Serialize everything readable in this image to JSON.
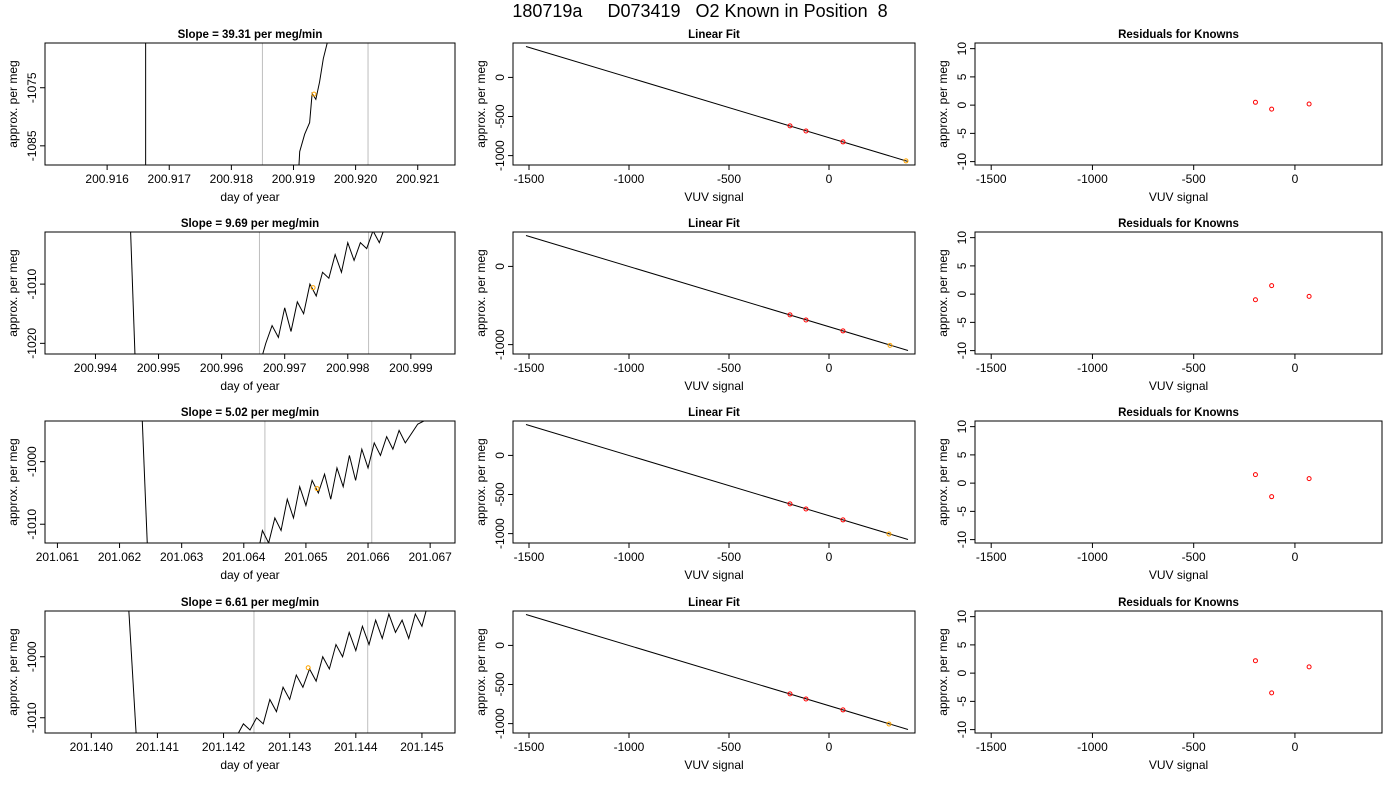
{
  "page_title": "180719a     D073419   O2 Known in Position  8",
  "colors": {
    "trace": "#000000",
    "vline": "#bebebe",
    "known_point": "#ff0000",
    "sample_point": "#ffa500"
  },
  "chart_data": [
    {
      "type": "line",
      "title": "Slope =  39.31  per meg/min",
      "xlabel": "day of year",
      "ylabel": "approx. per meg",
      "xlim": [
        200.915,
        200.9216
      ],
      "ylim": [
        -1088.3,
        -1067.3
      ],
      "xticks": [
        200.916,
        200.917,
        200.918,
        200.919,
        200.92,
        200.921
      ],
      "xtick_labels": [
        "200.916",
        "200.917",
        "200.918",
        "200.919",
        "200.920",
        "200.921"
      ],
      "yticks": [
        -1085,
        -1075
      ],
      "ytick_labels": [
        "-1085",
        "-1075"
      ],
      "vlines": [
        200.9185,
        200.9202
      ],
      "series": [
        {
          "points": [
            [
              200.91662,
              -1063
            ],
            [
              200.91662,
              -1090
            ]
          ]
        },
        {
          "points": [
            [
              200.91908,
              -1090
            ],
            [
              200.9191,
              -1086
            ],
            [
              200.91918,
              -1083
            ],
            [
              200.91926,
              -1081
            ],
            [
              200.9193,
              -1076
            ],
            [
              200.91936,
              -1077
            ],
            [
              200.91942,
              -1074
            ],
            [
              200.91948,
              -1070
            ],
            [
              200.91955,
              -1067
            ],
            [
              200.91962,
              -1066
            ]
          ]
        }
      ],
      "markers": [
        {
          "x": 200.91933,
          "y": -1076.1
        }
      ]
    },
    {
      "type": "line",
      "title": "Linear Fit",
      "xlabel": "VUV signal",
      "ylabel": "approx. per meg",
      "xlim": [
        -1580,
        430
      ],
      "ylim": [
        -1120,
        440
      ],
      "xticks": [
        -1500,
        -1000,
        -500,
        0
      ],
      "xtick_labels": [
        "-1500",
        "-1000",
        "-500",
        "0"
      ],
      "yticks": [
        -1000,
        -500,
        0
      ],
      "ytick_labels": [
        "-1000",
        "-500",
        "0"
      ],
      "series": [
        {
          "points": [
            [
              -1515,
              395
            ],
            [
              395,
              -1075
            ]
          ]
        }
      ],
      "known_points": [
        {
          "x": -195,
          "y": -620
        },
        {
          "x": -115,
          "y": -685
        },
        {
          "x": 70,
          "y": -825
        }
      ],
      "sample_points": [
        {
          "x": 385,
          "y": -1068
        }
      ]
    },
    {
      "type": "scatter",
      "title": "Residuals for Knowns",
      "xlabel": "VUV signal",
      "ylabel": "approx. per meg",
      "xlim": [
        -1580,
        430
      ],
      "ylim": [
        -10.6,
        11.0
      ],
      "xticks": [
        -1500,
        -1000,
        -500,
        0
      ],
      "xtick_labels": [
        "-1500",
        "-1000",
        "-500",
        "0"
      ],
      "yticks": [
        -10,
        -5,
        0,
        5,
        10
      ],
      "ytick_labels": [
        "-10",
        "-5",
        "0",
        "5",
        "10"
      ],
      "known_points": [
        {
          "x": -195,
          "y": 0.5
        },
        {
          "x": -115,
          "y": -0.7
        },
        {
          "x": 70,
          "y": 0.2
        }
      ]
    },
    {
      "type": "line",
      "title": "Slope =  9.69  per meg/min",
      "xlabel": "day of year",
      "ylabel": "approx. per meg",
      "xlim": [
        200.9932,
        200.9997
      ],
      "ylim": [
        -1021.8,
        -1001.2
      ],
      "xticks": [
        200.994,
        200.995,
        200.996,
        200.997,
        200.998,
        200.999
      ],
      "xtick_labels": [
        "200.994",
        "200.995",
        "200.996",
        "200.997",
        "200.998",
        "200.999"
      ],
      "yticks": [
        -1020,
        -1010
      ],
      "ytick_labels": [
        "-1020",
        "-1010"
      ],
      "vlines": [
        200.9966,
        200.99833
      ],
      "series": [
        {
          "points": [
            [
              200.99455,
              -999
            ],
            [
              200.99463,
              -1023
            ]
          ]
        },
        {
          "points": [
            [
              200.99662,
              -1023
            ],
            [
              200.9967,
              -1020
            ],
            [
              200.9968,
              -1017
            ],
            [
              200.9969,
              -1019
            ],
            [
              200.997,
              -1014
            ],
            [
              200.9971,
              -1018
            ],
            [
              200.9972,
              -1013
            ],
            [
              200.9973,
              -1015
            ],
            [
              200.9974,
              -1010
            ],
            [
              200.9975,
              -1012
            ],
            [
              200.9976,
              -1008
            ],
            [
              200.9977,
              -1009
            ],
            [
              200.9978,
              -1005
            ],
            [
              200.9979,
              -1008
            ],
            [
              200.998,
              -1003
            ],
            [
              200.9981,
              -1006
            ],
            [
              200.9982,
              -1003
            ],
            [
              200.9983,
              -1004
            ],
            [
              200.9984,
              -1001
            ],
            [
              200.9985,
              -1003
            ],
            [
              200.9986,
              -1000
            ],
            [
              200.9988,
              -1001
            ],
            [
              200.999,
              -1000
            ],
            [
              200.9992,
              -1001
            ],
            [
              200.9995,
              -999
            ]
          ]
        }
      ],
      "markers": [
        {
          "x": 200.99745,
          "y": -1010.6
        }
      ]
    },
    {
      "type": "line",
      "title": "Linear Fit",
      "xlabel": "VUV signal",
      "ylabel": "approx. per meg",
      "xlim": [
        -1580,
        430
      ],
      "ylim": [
        -1120,
        440
      ],
      "xticks": [
        -1500,
        -1000,
        -500,
        0
      ],
      "xtick_labels": [
        "-1500",
        "-1000",
        "-500",
        "0"
      ],
      "yticks": [
        -1000,
        0
      ],
      "ytick_labels": [
        "-1000",
        "0"
      ],
      "series": [
        {
          "points": [
            [
              -1515,
              395
            ],
            [
              395,
              -1075
            ]
          ]
        }
      ],
      "known_points": [
        {
          "x": -195,
          "y": -620
        },
        {
          "x": -115,
          "y": -685
        },
        {
          "x": 70,
          "y": -825
        }
      ],
      "sample_points": [
        {
          "x": 305,
          "y": -1010
        }
      ]
    },
    {
      "type": "scatter",
      "title": "Residuals for Knowns",
      "xlabel": "VUV signal",
      "ylabel": "approx. per meg",
      "xlim": [
        -1580,
        430
      ],
      "ylim": [
        -10.6,
        11.0
      ],
      "xticks": [
        -1500,
        -1000,
        -500,
        0
      ],
      "xtick_labels": [
        "-1500",
        "-1000",
        "-500",
        "0"
      ],
      "yticks": [
        -10,
        -5,
        0,
        5,
        10
      ],
      "ytick_labels": [
        "-10",
        "-5",
        "0",
        "5",
        "10"
      ],
      "known_points": [
        {
          "x": -195,
          "y": -1.0
        },
        {
          "x": -115,
          "y": 1.5
        },
        {
          "x": 70,
          "y": -0.4
        }
      ]
    },
    {
      "type": "line",
      "title": "Slope =  5.02  per meg/min",
      "xlabel": "day of year",
      "ylabel": "approx. per meg",
      "xlim": [
        201.0608,
        201.0674
      ],
      "ylim": [
        -1013.0,
        -993.5
      ],
      "xticks": [
        201.061,
        201.062,
        201.063,
        201.064,
        201.065,
        201.066,
        201.067
      ],
      "xtick_labels": [
        "201.061",
        "201.062",
        "201.063",
        "201.064",
        "201.065",
        "201.066",
        "201.067"
      ],
      "yticks": [
        -1010,
        -1000
      ],
      "ytick_labels": [
        "-1010",
        "-1000"
      ],
      "vlines": [
        201.06434,
        201.06606
      ],
      "series": [
        {
          "points": [
            [
              201.06236,
              -992
            ],
            [
              201.06245,
              -1014
            ]
          ]
        },
        {
          "points": [
            [
              201.06424,
              -1014
            ],
            [
              201.0643,
              -1011
            ],
            [
              201.0644,
              -1013
            ],
            [
              201.0645,
              -1009
            ],
            [
              201.0646,
              -1011
            ],
            [
              201.0647,
              -1006
            ],
            [
              201.0648,
              -1009
            ],
            [
              201.0649,
              -1004
            ],
            [
              201.065,
              -1007
            ],
            [
              201.0651,
              -1003
            ],
            [
              201.0652,
              -1005
            ],
            [
              201.0653,
              -1002
            ],
            [
              201.0654,
              -1006
            ],
            [
              201.0655,
              -1001
            ],
            [
              201.0656,
              -1004
            ],
            [
              201.0657,
              -999
            ],
            [
              201.0658,
              -1003
            ],
            [
              201.0659,
              -998
            ],
            [
              201.066,
              -1001
            ],
            [
              201.0661,
              -997
            ],
            [
              201.0662,
              -999
            ],
            [
              201.0663,
              -996
            ],
            [
              201.0664,
              -998
            ],
            [
              201.0665,
              -995
            ],
            [
              201.0666,
              -997
            ],
            [
              201.0668,
              -994
            ],
            [
              201.067,
              -993
            ]
          ]
        }
      ],
      "markers": [
        {
          "x": 201.06518,
          "y": -1004.3
        }
      ]
    },
    {
      "type": "line",
      "title": "Linear Fit",
      "xlabel": "VUV signal",
      "ylabel": "approx. per meg",
      "xlim": [
        -1580,
        430
      ],
      "ylim": [
        -1120,
        440
      ],
      "xticks": [
        -1500,
        -1000,
        -500,
        0
      ],
      "xtick_labels": [
        "-1500",
        "-1000",
        "-500",
        "0"
      ],
      "yticks": [
        -1000,
        -500,
        0
      ],
      "ytick_labels": [
        "-1000",
        "-500",
        "0"
      ],
      "series": [
        {
          "points": [
            [
              -1515,
              395
            ],
            [
              395,
              -1075
            ]
          ]
        }
      ],
      "known_points": [
        {
          "x": -195,
          "y": -620
        },
        {
          "x": -115,
          "y": -685
        },
        {
          "x": 70,
          "y": -825
        }
      ],
      "sample_points": [
        {
          "x": 300,
          "y": -1005
        }
      ]
    },
    {
      "type": "scatter",
      "title": "Residuals for Knowns",
      "xlabel": "VUV signal",
      "ylabel": "approx. per meg",
      "xlim": [
        -1580,
        430
      ],
      "ylim": [
        -10.6,
        11.0
      ],
      "xticks": [
        -1500,
        -1000,
        -500,
        0
      ],
      "xtick_labels": [
        "-1500",
        "-1000",
        "-500",
        "0"
      ],
      "yticks": [
        -10,
        -5,
        0,
        5,
        10
      ],
      "ytick_labels": [
        "-10",
        "-5",
        "0",
        "5",
        "10"
      ],
      "known_points": [
        {
          "x": -195,
          "y": 1.5
        },
        {
          "x": -115,
          "y": -2.4
        },
        {
          "x": 70,
          "y": 0.8
        }
      ]
    },
    {
      "type": "line",
      "title": "Slope =  6.61  per meg/min",
      "xlabel": "day of year",
      "ylabel": "approx. per meg",
      "xlim": [
        201.1393,
        201.1455
      ],
      "ylim": [
        -1012.5,
        -992.5
      ],
      "xticks": [
        201.14,
        201.141,
        201.142,
        201.143,
        201.144,
        201.145
      ],
      "xtick_labels": [
        "201.140",
        "201.141",
        "201.142",
        "201.143",
        "201.144",
        "201.145"
      ],
      "yticks": [
        -1010,
        -1000
      ],
      "ytick_labels": [
        "-1010",
        "-1000"
      ],
      "vlines": [
        201.14246,
        201.14418
      ],
      "series": [
        {
          "points": [
            [
              201.14056,
              -991
            ],
            [
              201.14068,
              -1013
            ]
          ]
        },
        {
          "points": [
            [
              201.1422,
              -1013
            ],
            [
              201.1423,
              -1011
            ],
            [
              201.1424,
              -1012
            ],
            [
              201.1425,
              -1010
            ],
            [
              201.1426,
              -1011
            ],
            [
              201.1427,
              -1007
            ],
            [
              201.1428,
              -1009
            ],
            [
              201.1429,
              -1005
            ],
            [
              201.143,
              -1007
            ],
            [
              201.1431,
              -1003
            ],
            [
              201.1432,
              -1005
            ],
            [
              201.1433,
              -1002
            ],
            [
              201.1434,
              -1004
            ],
            [
              201.1435,
              -1000
            ],
            [
              201.1436,
              -1002
            ],
            [
              201.1437,
              -998
            ],
            [
              201.1438,
              -1000
            ],
            [
              201.1439,
              -996
            ],
            [
              201.144,
              -999
            ],
            [
              201.1441,
              -995
            ],
            [
              201.1442,
              -998
            ],
            [
              201.1443,
              -994
            ],
            [
              201.1444,
              -997
            ],
            [
              201.1445,
              -993
            ],
            [
              201.1446,
              -996
            ],
            [
              201.1447,
              -994
            ],
            [
              201.1448,
              -997
            ],
            [
              201.1449,
              -993
            ],
            [
              201.145,
              -995
            ],
            [
              201.1451,
              -991
            ]
          ]
        }
      ],
      "markers": [
        {
          "x": 201.14328,
          "y": -1001.8
        }
      ]
    },
    {
      "type": "line",
      "title": "Linear Fit",
      "xlabel": "VUV signal",
      "ylabel": "approx. per meg",
      "xlim": [
        -1580,
        430
      ],
      "ylim": [
        -1120,
        440
      ],
      "xticks": [
        -1500,
        -1000,
        -500,
        0
      ],
      "xtick_labels": [
        "-1500",
        "-1000",
        "-500",
        "0"
      ],
      "yticks": [
        -1000,
        -500,
        0
      ],
      "ytick_labels": [
        "-1000",
        "-500",
        "0"
      ],
      "series": [
        {
          "points": [
            [
              -1515,
              395
            ],
            [
              395,
              -1075
            ]
          ]
        }
      ],
      "known_points": [
        {
          "x": -195,
          "y": -620
        },
        {
          "x": -115,
          "y": -685
        },
        {
          "x": 70,
          "y": -825
        }
      ],
      "sample_points": [
        {
          "x": 300,
          "y": -1005
        }
      ]
    },
    {
      "type": "scatter",
      "title": "Residuals for Knowns",
      "xlabel": "VUV signal",
      "ylabel": "approx. per meg",
      "xlim": [
        -1580,
        430
      ],
      "ylim": [
        -10.6,
        11.0
      ],
      "xticks": [
        -1500,
        -1000,
        -500,
        0
      ],
      "xtick_labels": [
        "-1500",
        "-1000",
        "-500",
        "0"
      ],
      "yticks": [
        -10,
        -5,
        0,
        5,
        10
      ],
      "ytick_labels": [
        "-10",
        "-5",
        "0",
        "5",
        "10"
      ],
      "known_points": [
        {
          "x": -195,
          "y": 2.2
        },
        {
          "x": -115,
          "y": -3.5
        },
        {
          "x": 70,
          "y": 1.1
        }
      ]
    }
  ]
}
